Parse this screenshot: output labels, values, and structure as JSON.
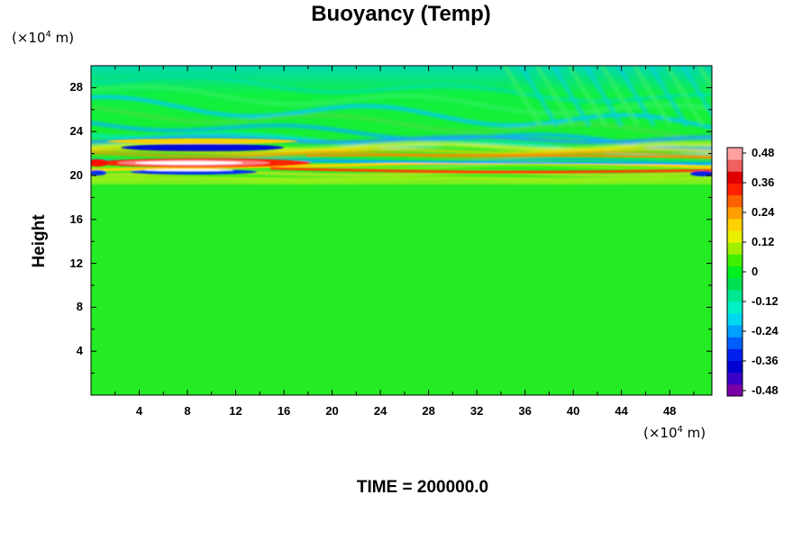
{
  "chart_data": {
    "type": "heatmap",
    "title": "Buoyancy (Temp)",
    "ylabel": "Height",
    "x_unit_prefix": "(×10",
    "x_unit_exp": "4",
    "x_unit_suffix": " m)",
    "y_unit_prefix": "(×10",
    "y_unit_exp": "4",
    "y_unit_suffix": " m)",
    "xlim": [
      0,
      51.5
    ],
    "ylim": [
      0,
      30
    ],
    "xticks": [
      4,
      8,
      12,
      16,
      20,
      24,
      28,
      32,
      36,
      40,
      44,
      48
    ],
    "yticks": [
      4,
      8,
      12,
      16,
      20,
      24,
      28
    ],
    "colorbar": {
      "ticks": [
        "0.48",
        "0.36",
        "0.24",
        "0.12",
        "0",
        "-0.12",
        "-0.24",
        "-0.36",
        "-0.48"
      ],
      "range": [
        -0.48,
        0.48
      ],
      "colors": [
        "#7a00a8",
        "#3b00c8",
        "#0000d0",
        "#0020f0",
        "#0060ff",
        "#00a0ff",
        "#00d8f0",
        "#00f0c8",
        "#00e890",
        "#00e050",
        "#00f020",
        "#40f000",
        "#a0f000",
        "#e8f000",
        "#ffd000",
        "#ffa000",
        "#ff6000",
        "#ff2000",
        "#e00000",
        "#f06060",
        "#ffa0a0"
      ]
    },
    "features": {
      "background_value": 0.0,
      "warm_layer_y": 20,
      "wave_layer_y": [
        20,
        26
      ],
      "strong_anomaly_x": [
        4,
        16
      ],
      "strong_anomaly_peak": 0.48,
      "strong_anomaly_trough": -0.36
    },
    "time_label": "TIME = 200000.0"
  }
}
